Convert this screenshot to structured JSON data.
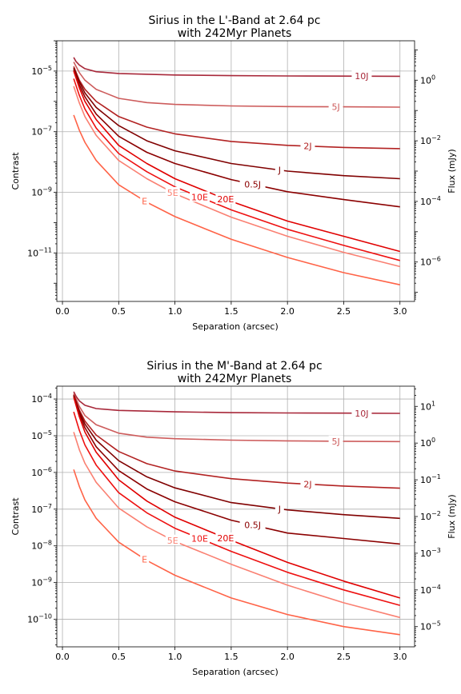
{
  "chart_data": [
    {
      "type": "line",
      "title_line1": "Sirius in the L'-Band at 2.64 pc",
      "title_line2": "with 242Myr Planets",
      "xlabel": "Separation (arcsec)",
      "ylabel": "Contrast",
      "ylabel_right": "Flux (mJy)",
      "xlim": [
        -0.05,
        3.13
      ],
      "ylim_log": [
        -12.6,
        -4.0
      ],
      "y2lim_log": [
        -7.3,
        1.3
      ],
      "x_ticks": [
        "0.0",
        "0.5",
        "1.0",
        "1.5",
        "2.0",
        "2.5",
        "3.0"
      ],
      "x_tick_values": [
        0,
        0.5,
        1.0,
        1.5,
        2.0,
        2.5,
        3.0
      ],
      "y_tick_exps": [
        -11,
        -9,
        -7,
        -5
      ],
      "y2_tick_exps": [
        -6,
        -4,
        -2,
        0
      ],
      "log_scale": true,
      "grid": true,
      "series": [
        {
          "name": "10J",
          "color": "#a8283a",
          "label_x": 2.66,
          "x": [
            0.1,
            0.12,
            0.15,
            0.2,
            0.3,
            0.5,
            1.0,
            1.5,
            2.0,
            2.5,
            3.0
          ],
          "y_log": [
            -4.55,
            -4.68,
            -4.8,
            -4.92,
            -5.02,
            -5.08,
            -5.13,
            -5.15,
            -5.16,
            -5.165,
            -5.17
          ]
        },
        {
          "name": "5J",
          "color": "#cd5c5c",
          "label_x": 2.43,
          "x": [
            0.1,
            0.15,
            0.2,
            0.3,
            0.5,
            0.75,
            1.0,
            1.5,
            2.0,
            2.5,
            3.0
          ],
          "y_log": [
            -4.7,
            -5.05,
            -5.3,
            -5.6,
            -5.9,
            -6.04,
            -6.1,
            -6.15,
            -6.17,
            -6.18,
            -6.19
          ]
        },
        {
          "name": "2J",
          "color": "#b22222",
          "label_x": 2.18,
          "x": [
            0.1,
            0.15,
            0.2,
            0.3,
            0.5,
            0.75,
            1.0,
            1.5,
            2.0,
            2.5,
            3.0
          ],
          "y_log": [
            -4.85,
            -5.3,
            -5.6,
            -6.0,
            -6.5,
            -6.85,
            -7.07,
            -7.32,
            -7.45,
            -7.52,
            -7.56
          ]
        },
        {
          "name": "J",
          "color": "#800000",
          "label_x": 1.93,
          "x": [
            0.1,
            0.15,
            0.2,
            0.3,
            0.5,
            0.75,
            1.0,
            1.5,
            2.0,
            2.5,
            3.0
          ],
          "y_log": [
            -4.9,
            -5.35,
            -5.72,
            -6.2,
            -6.8,
            -7.3,
            -7.63,
            -8.05,
            -8.3,
            -8.45,
            -8.55
          ]
        },
        {
          "name": "0.5J",
          "color": "#8b0000",
          "label_x": 1.69,
          "x": [
            0.1,
            0.15,
            0.2,
            0.3,
            0.5,
            0.75,
            1.0,
            1.5,
            2.0,
            2.5,
            3.0
          ],
          "y_log": [
            -4.95,
            -5.45,
            -5.85,
            -6.42,
            -7.15,
            -7.68,
            -8.05,
            -8.58,
            -8.98,
            -9.24,
            -9.48
          ]
        },
        {
          "name": "20E",
          "color": "#e00000",
          "label_x": 1.45,
          "x": [
            0.1,
            0.15,
            0.2,
            0.3,
            0.5,
            0.75,
            1.0,
            1.5,
            2.0,
            2.5,
            3.0
          ],
          "y_log": [
            -5.0,
            -5.55,
            -6.0,
            -6.6,
            -7.45,
            -8.05,
            -8.55,
            -9.3,
            -9.95,
            -10.45,
            -10.95
          ]
        },
        {
          "name": "10E",
          "color": "#ee1010",
          "label_x": 1.22,
          "x": [
            0.1,
            0.15,
            0.2,
            0.3,
            0.5,
            0.75,
            1.0,
            1.5,
            2.0,
            2.5,
            3.0
          ],
          "y_log": [
            -5.25,
            -5.8,
            -6.25,
            -6.88,
            -7.72,
            -8.32,
            -8.82,
            -9.58,
            -10.22,
            -10.75,
            -11.25
          ]
        },
        {
          "name": "5E",
          "color": "#fa8072",
          "label_x": 0.98,
          "x": [
            0.1,
            0.15,
            0.2,
            0.3,
            0.5,
            0.75,
            1.0,
            1.5,
            2.0,
            2.5,
            3.0
          ],
          "y_log": [
            -5.5,
            -6.05,
            -6.5,
            -7.12,
            -7.95,
            -8.55,
            -9.05,
            -9.82,
            -10.45,
            -10.98,
            -11.45
          ]
        },
        {
          "name": "E",
          "color": "#ff6347",
          "label_x": 0.73,
          "x": [
            0.1,
            0.15,
            0.2,
            0.3,
            0.5,
            0.75,
            1.0,
            1.5,
            2.0,
            2.5,
            3.0
          ],
          "y_log": [
            -6.45,
            -6.95,
            -7.35,
            -7.95,
            -8.75,
            -9.33,
            -9.8,
            -10.55,
            -11.15,
            -11.65,
            -12.05
          ]
        }
      ]
    },
    {
      "type": "line",
      "title_line1": "Sirius in the M'-Band at 2.64 pc",
      "title_line2": "with 242Myr Planets",
      "xlabel": "Separation (arcsec)",
      "ylabel": "Contrast",
      "ylabel_right": "Flux (mJy)",
      "xlim": [
        -0.05,
        3.13
      ],
      "ylim_log": [
        -10.75,
        -3.65
      ],
      "y2lim_log": [
        -5.55,
        1.55
      ],
      "x_ticks": [
        "0.0",
        "0.5",
        "1.0",
        "1.5",
        "2.0",
        "2.5",
        "3.0"
      ],
      "x_tick_values": [
        0,
        0.5,
        1.0,
        1.5,
        2.0,
        2.5,
        3.0
      ],
      "y_tick_exps": [
        -10,
        -9,
        -8,
        -7,
        -6,
        -5,
        -4
      ],
      "y2_tick_exps": [
        -5,
        -4,
        -3,
        -2,
        -1,
        0,
        1
      ],
      "log_scale": true,
      "grid": true,
      "series": [
        {
          "name": "10J",
          "color": "#a8283a",
          "label_x": 2.66,
          "x": [
            0.1,
            0.12,
            0.15,
            0.2,
            0.3,
            0.5,
            1.0,
            1.5,
            2.0,
            2.5,
            3.0
          ],
          "y_log": [
            -3.8,
            -3.92,
            -4.05,
            -4.17,
            -4.26,
            -4.31,
            -4.35,
            -4.37,
            -4.38,
            -4.385,
            -4.39
          ]
        },
        {
          "name": "5J",
          "color": "#cd5c5c",
          "label_x": 2.43,
          "x": [
            0.1,
            0.15,
            0.2,
            0.3,
            0.5,
            0.75,
            1.0,
            1.5,
            2.0,
            2.5,
            3.0
          ],
          "y_log": [
            -3.85,
            -4.2,
            -4.45,
            -4.7,
            -4.93,
            -5.04,
            -5.08,
            -5.12,
            -5.14,
            -5.15,
            -5.16
          ]
        },
        {
          "name": "2J",
          "color": "#b22222",
          "label_x": 2.18,
          "x": [
            0.1,
            0.15,
            0.2,
            0.3,
            0.5,
            0.75,
            1.0,
            1.5,
            2.0,
            2.5,
            3.0
          ],
          "y_log": [
            -3.88,
            -4.3,
            -4.6,
            -4.98,
            -5.43,
            -5.76,
            -5.96,
            -6.17,
            -6.29,
            -6.37,
            -6.43
          ]
        },
        {
          "name": "J",
          "color": "#800000",
          "label_x": 1.93,
          "x": [
            0.1,
            0.15,
            0.2,
            0.3,
            0.5,
            0.75,
            1.0,
            1.5,
            2.0,
            2.5,
            3.0
          ],
          "y_log": [
            -3.9,
            -4.35,
            -4.68,
            -5.12,
            -5.68,
            -6.12,
            -6.42,
            -6.82,
            -7.02,
            -7.15,
            -7.25
          ]
        },
        {
          "name": "0.5J",
          "color": "#8b0000",
          "label_x": 1.69,
          "x": [
            0.1,
            0.15,
            0.2,
            0.3,
            0.5,
            0.75,
            1.0,
            1.5,
            2.0,
            2.5,
            3.0
          ],
          "y_log": [
            -3.92,
            -4.4,
            -4.78,
            -5.3,
            -5.95,
            -6.45,
            -6.8,
            -7.3,
            -7.65,
            -7.8,
            -7.95
          ]
        },
        {
          "name": "20E",
          "color": "#e00000",
          "label_x": 1.45,
          "x": [
            0.1,
            0.15,
            0.2,
            0.3,
            0.5,
            0.75,
            1.0,
            1.5,
            2.0,
            2.5,
            3.0
          ],
          "y_log": [
            -3.95,
            -4.48,
            -4.9,
            -5.45,
            -6.2,
            -6.78,
            -7.22,
            -7.85,
            -8.45,
            -8.96,
            -9.42
          ]
        },
        {
          "name": "10E",
          "color": "#ee1010",
          "label_x": 1.22,
          "x": [
            0.1,
            0.15,
            0.2,
            0.3,
            0.5,
            0.75,
            1.0,
            1.5,
            2.0,
            2.5,
            3.0
          ],
          "y_log": [
            -4.35,
            -4.85,
            -5.25,
            -5.8,
            -6.55,
            -7.1,
            -7.52,
            -8.15,
            -8.72,
            -9.2,
            -9.62
          ]
        },
        {
          "name": "5E",
          "color": "#fa8072",
          "label_x": 0.98,
          "x": [
            0.1,
            0.15,
            0.2,
            0.3,
            0.5,
            0.75,
            1.0,
            1.5,
            2.0,
            2.5,
            3.0
          ],
          "y_log": [
            -4.9,
            -5.38,
            -5.75,
            -6.27,
            -6.97,
            -7.48,
            -7.88,
            -8.5,
            -9.07,
            -9.55,
            -9.95
          ]
        },
        {
          "name": "E",
          "color": "#ff6347",
          "label_x": 0.73,
          "x": [
            0.1,
            0.15,
            0.2,
            0.3,
            0.5,
            0.75,
            1.0,
            1.5,
            2.0,
            2.5,
            3.0
          ],
          "y_log": [
            -5.92,
            -6.38,
            -6.75,
            -7.25,
            -7.9,
            -8.4,
            -8.8,
            -9.42,
            -9.87,
            -10.2,
            -10.42
          ]
        }
      ]
    }
  ]
}
